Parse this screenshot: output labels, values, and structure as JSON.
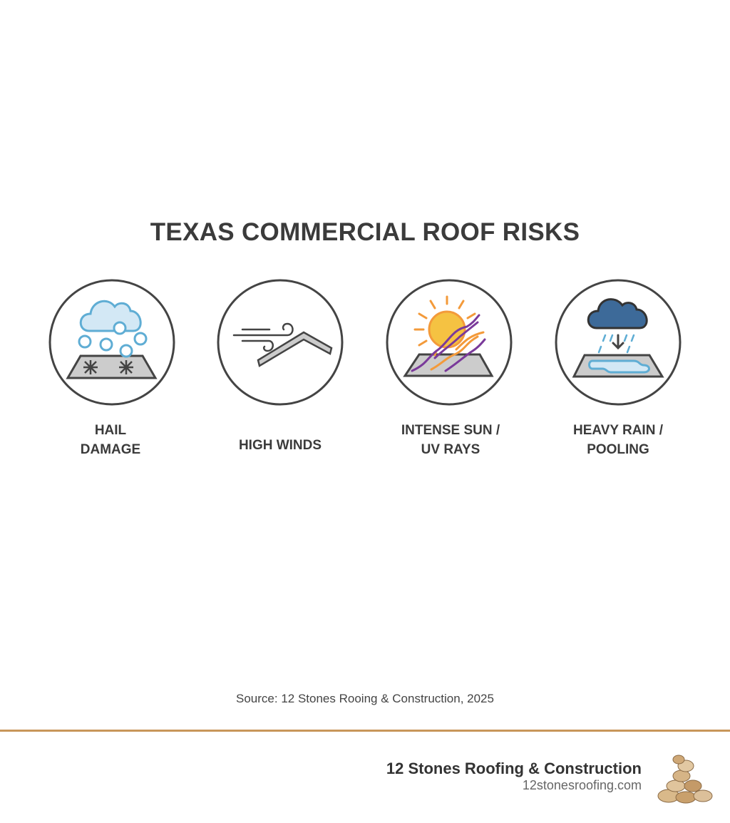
{
  "title": "TEXAS COMMERCIAL ROOF RISKS",
  "risks": [
    {
      "label_line1": "HAIL",
      "label_line2": "DAMAGE",
      "icon": "hail-icon"
    },
    {
      "label_line1": "HIGH WINDS",
      "label_line2": "",
      "icon": "wind-icon"
    },
    {
      "label_line1": "INTENSE SUN /",
      "label_line2": "UV RAYS",
      "icon": "sun-uv-icon"
    },
    {
      "label_line1": "HEAVY RAIN /",
      "label_line2": "POOLING",
      "icon": "rain-pooling-icon"
    }
  ],
  "source": "Source: 12 Stones Rooing & Construction, 2025",
  "footer": {
    "company": "12 Stones Roofing & Construction",
    "website": "12stonesroofing.com",
    "logo_icon": "stone-stack-logo"
  },
  "colors": {
    "accent_rule": "#c8965a",
    "hail_blue": "#5fadd4",
    "rain_cloud": "#3d6a99",
    "sun": "#f5c242",
    "uv_purple": "#7a3a9a"
  }
}
